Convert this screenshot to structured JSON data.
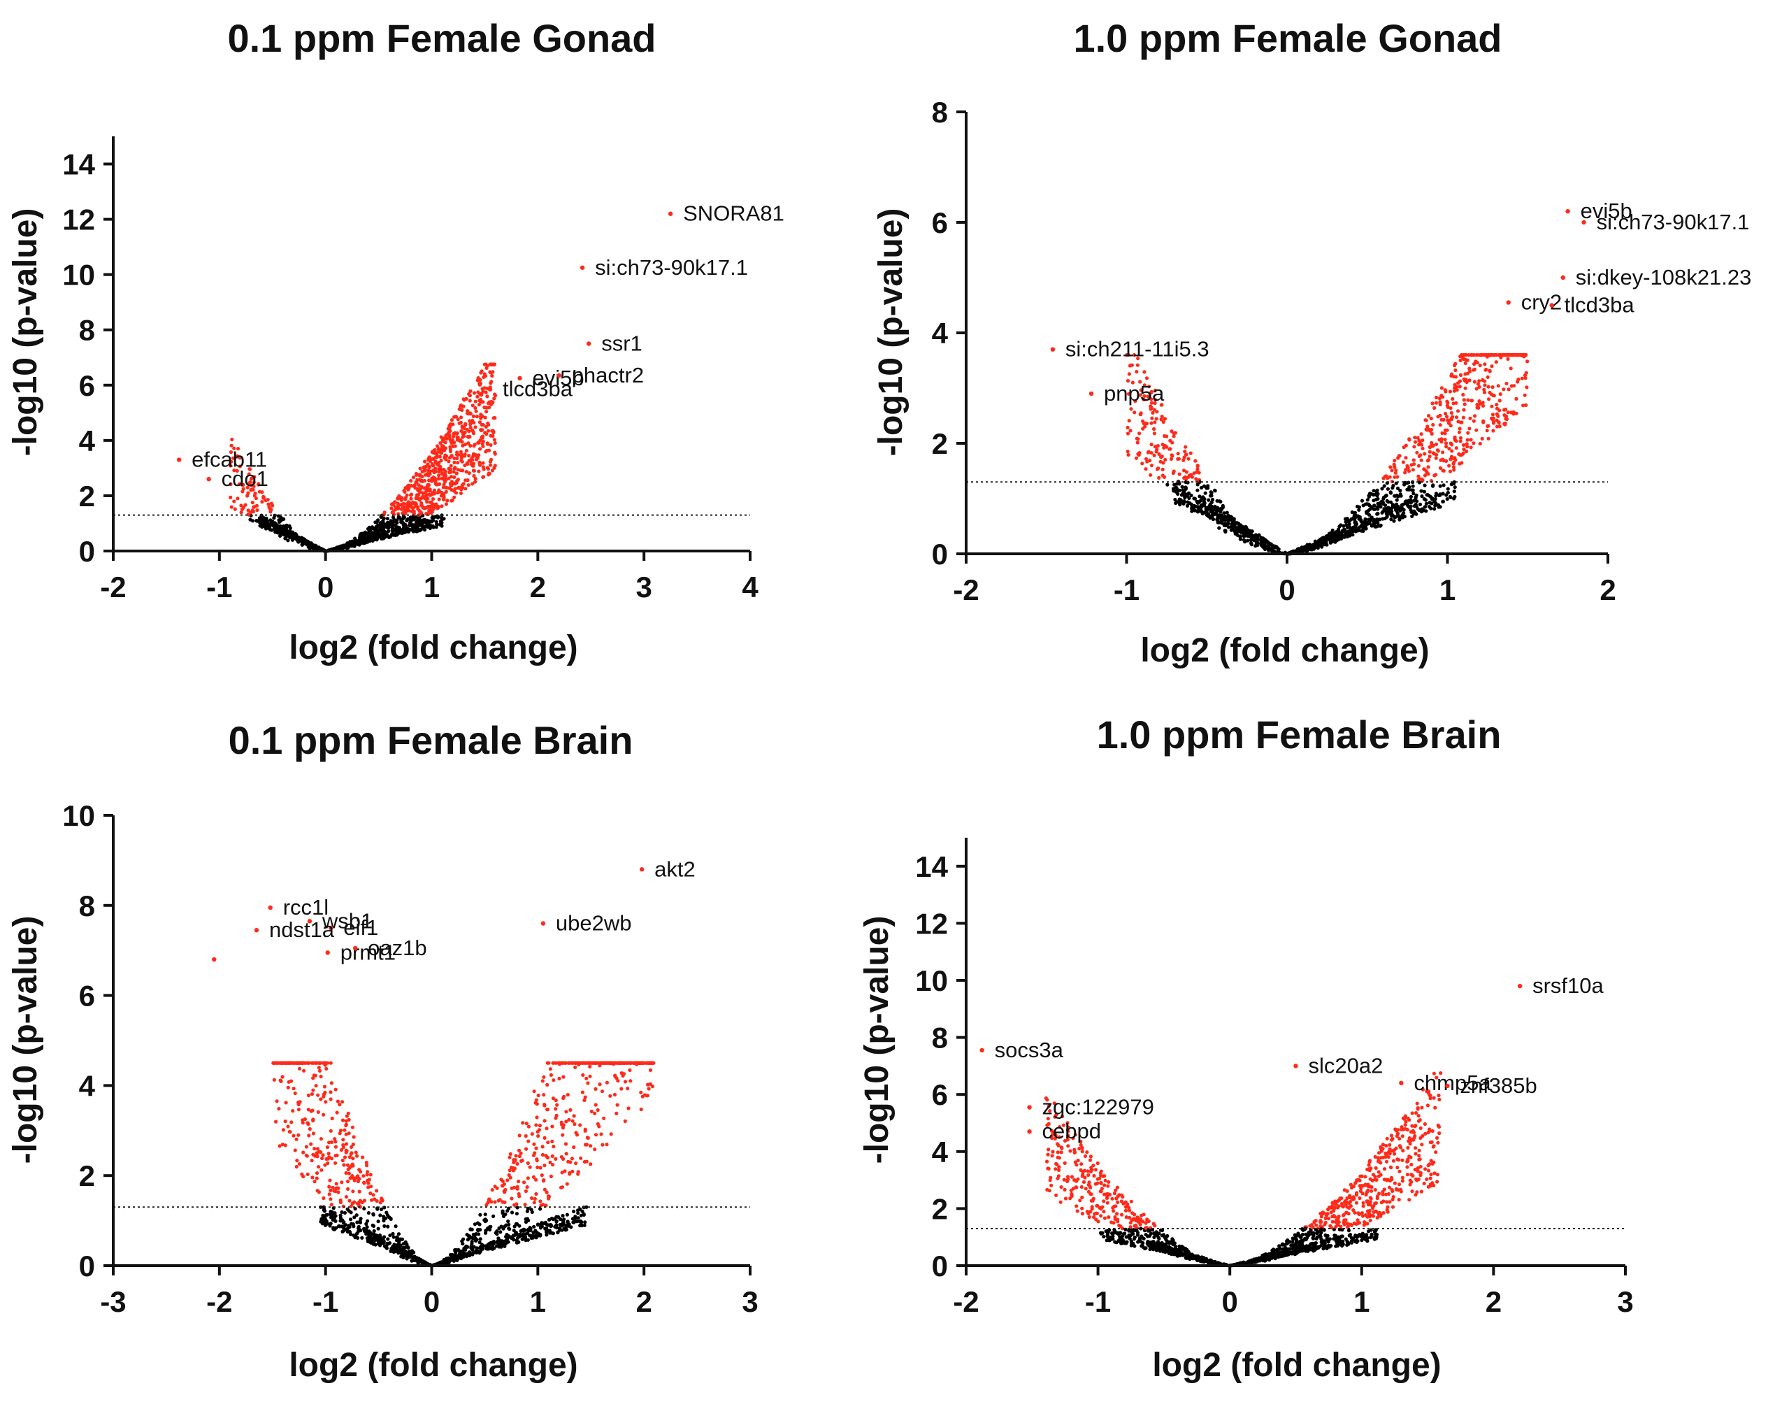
{
  "figure": {
    "description_note": "Four volcano plots"
  },
  "chart_data": [
    {
      "type": "scatter",
      "title": "0.1 ppm Female Gonad",
      "xlabel": "log2 (fold change)",
      "ylabel": "-log10 (p-value)",
      "xlim": [
        -2,
        4
      ],
      "ylim": [
        0,
        15
      ],
      "xticks": [
        -2,
        -1,
        0,
        1,
        2,
        3,
        4
      ],
      "yticks": [
        0,
        2,
        4,
        6,
        8,
        10,
        12,
        14
      ],
      "threshold": 1.3,
      "significant_color": "#ff2a1a",
      "nonsignificant_color": "#000000",
      "cloud": {
        "left_extent": -0.9,
        "right_extent": 1.6,
        "left_density": 0.15,
        "right_density": 1.0,
        "noise": 0.9,
        "seed": 11
      },
      "labeled_genes": [
        {
          "name": "SNORA81",
          "x": 3.25,
          "y": 12.2
        },
        {
          "name": "si:ch73-90k17.1",
          "x": 2.42,
          "y": 10.25
        },
        {
          "name": "ssr1",
          "x": 2.48,
          "y": 7.5
        },
        {
          "name": "evi5b",
          "x": 1.83,
          "y": 6.25
        },
        {
          "name": "phactr2",
          "x": 2.2,
          "y": 6.35
        },
        {
          "name": "tlcd3ba",
          "x": 1.55,
          "y": 5.85
        },
        {
          "name": "efcab11",
          "x": -1.38,
          "y": 3.3
        },
        {
          "name": "cdo1",
          "x": -1.1,
          "y": 2.6
        }
      ]
    },
    {
      "type": "scatter",
      "title": "1.0 ppm Female Gonad",
      "xlabel": "log2 (fold change)",
      "ylabel": "-log10 (p-value)",
      "xlim": [
        -2,
        2
      ],
      "ylim": [
        0,
        8
      ],
      "xticks": [
        -2,
        -1,
        0,
        1,
        2
      ],
      "yticks": [
        0,
        2,
        4,
        6,
        8
      ],
      "threshold": 1.3,
      "significant_color": "#ff2a1a",
      "nonsignificant_color": "#000000",
      "cloud": {
        "left_extent": -1.0,
        "right_extent": 1.5,
        "left_density": 0.35,
        "right_density": 0.9,
        "noise": 0.7,
        "seed": 23
      },
      "labeled_genes": [
        {
          "name": "evi5b",
          "x": 1.75,
          "y": 6.2
        },
        {
          "name": "si:ch73-90k17.1",
          "x": 1.85,
          "y": 6.0
        },
        {
          "name": "si:dkey-108k21.23",
          "x": 1.72,
          "y": 5.0
        },
        {
          "name": "cry2",
          "x": 1.38,
          "y": 4.55
        },
        {
          "name": "tlcd3ba",
          "x": 1.65,
          "y": 4.5
        },
        {
          "name": "si:ch211-11i5.3",
          "x": -1.46,
          "y": 3.7
        },
        {
          "name": "pnp5a",
          "x": -1.22,
          "y": 2.9
        }
      ]
    },
    {
      "type": "scatter",
      "title": "0.1 ppm Female Brain",
      "xlabel": "log2 (fold change)",
      "ylabel": "-log10 (p-value)",
      "xlim": [
        -3,
        3
      ],
      "ylim": [
        0,
        10
      ],
      "xticks": [
        -3,
        -2,
        -1,
        0,
        1,
        2,
        3
      ],
      "yticks": [
        0,
        2,
        4,
        6,
        8,
        10
      ],
      "threshold": 1.3,
      "significant_color": "#ff2a1a",
      "nonsignificant_color": "#000000",
      "cloud": {
        "left_extent": -1.5,
        "right_extent": 2.1,
        "left_density": 1.0,
        "right_density": 1.3,
        "noise": 1.4,
        "seed": 37
      },
      "labeled_genes": [
        {
          "name": "akt2",
          "x": 1.98,
          "y": 8.8
        },
        {
          "name": "rcc1l",
          "x": -1.52,
          "y": 7.95
        },
        {
          "name": "wsb1",
          "x": -1.15,
          "y": 7.65
        },
        {
          "name": "eif1",
          "x": -0.95,
          "y": 7.5
        },
        {
          "name": "ndst1a",
          "x": -1.65,
          "y": 7.45
        },
        {
          "name": "ube2wb",
          "x": 1.05,
          "y": 7.6
        },
        {
          "name": "prmt1",
          "x": -0.98,
          "y": 6.95
        },
        {
          "name": "oaz1b",
          "x": -0.72,
          "y": 7.05
        },
        {
          "name": "",
          "x": -2.05,
          "y": 6.8
        }
      ]
    },
    {
      "type": "scatter",
      "title": "1.0 ppm Female Brain",
      "xlabel": "log2 (fold change)",
      "ylabel": "-log10 (p-value)",
      "xlim": [
        -2,
        3
      ],
      "ylim": [
        0,
        15
      ],
      "xticks": [
        -2,
        -1,
        0,
        1,
        2,
        3
      ],
      "yticks": [
        0,
        2,
        4,
        6,
        8,
        10,
        12,
        14
      ],
      "threshold": 1.3,
      "significant_color": "#ff2a1a",
      "nonsignificant_color": "#000000",
      "cloud": {
        "left_extent": -1.4,
        "right_extent": 1.6,
        "left_density": 0.55,
        "right_density": 0.9,
        "noise": 0.8,
        "seed": 53
      },
      "labeled_genes": [
        {
          "name": "srsf10a",
          "x": 2.2,
          "y": 9.8
        },
        {
          "name": "socs3a",
          "x": -1.88,
          "y": 7.55
        },
        {
          "name": "slc20a2",
          "x": 0.5,
          "y": 7.0
        },
        {
          "name": "chmp5a",
          "x": 1.3,
          "y": 6.4
        },
        {
          "name": "znf385b",
          "x": 1.65,
          "y": 6.3
        },
        {
          "name": "zgc:122979",
          "x": -1.52,
          "y": 5.55
        },
        {
          "name": "cebpd",
          "x": -1.52,
          "y": 4.7
        }
      ]
    }
  ]
}
